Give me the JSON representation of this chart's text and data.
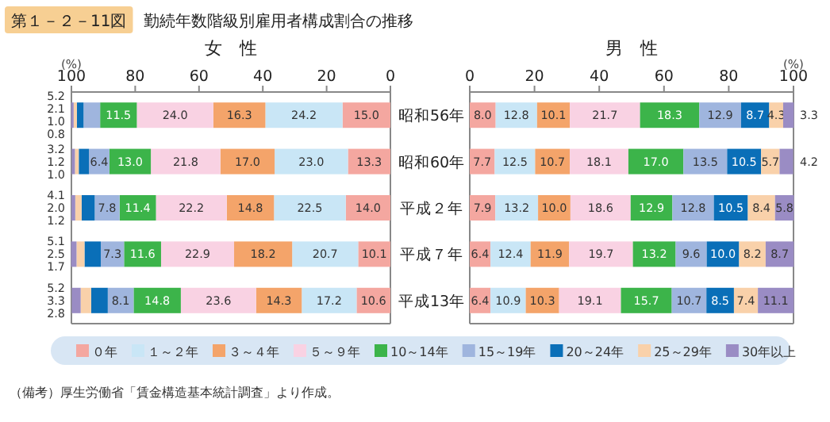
{
  "chart_data": [
    {
      "type": "bar",
      "orientation": "horizontal",
      "stacked": true,
      "title": "第１－２－11図　勤続年数階級別雇用者構成割合の推移",
      "xlabel": "女　性",
      "annotations": [
        "(%)"
      ],
      "categories": [
        null,
        null,
        null,
        null,
        null
      ],
      "tick_labels": "x",
      "xlim": [
        100,
        0
      ],
      "xticks": [
        100,
        80,
        60,
        40,
        20,
        0
      ],
      "legend": false,
      "grid": false,
      "series": [
        {
          "color": "#f4a7a0",
          "values": [
            15.0,
            13.3,
            14.0,
            10.1,
            10.6
          ],
          "value_labels": [
            "15.0",
            "13.3",
            "14.0",
            "10.1",
            "10.6"
          ]
        },
        {
          "color": "#c9e6f6",
          "values": [
            24.2,
            23.0,
            22.5,
            20.7,
            17.2
          ],
          "value_labels": [
            "24.2",
            "23.0",
            "22.5",
            "20.7",
            "17.2"
          ]
        },
        {
          "color": "#f4a46a",
          "values": [
            16.3,
            17.0,
            14.8,
            18.2,
            14.3
          ],
          "value_labels": [
            "16.3",
            "17.0",
            "14.8",
            "18.2",
            "14.3"
          ]
        },
        {
          "color": "#f9d2e3",
          "values": [
            24.0,
            21.8,
            22.2,
            22.9,
            23.6
          ],
          "value_labels": [
            "24.0",
            "21.8",
            "22.2",
            "22.9",
            "23.6"
          ]
        },
        {
          "color": "#3cb44a",
          "values": [
            11.5,
            13.0,
            11.4,
            11.6,
            14.8
          ],
          "value_labels": [
            "11.5",
            "13.0",
            "11.4",
            "11.6",
            "14.8"
          ]
        },
        {
          "color": "#9fb5de",
          "values": [
            5.2,
            6.4,
            7.8,
            7.3,
            8.1
          ],
          "value_labels": [
            "5.2",
            "6.4",
            "7.8",
            "7.3",
            "8.1"
          ]
        },
        {
          "color": "#0a6fb8",
          "values": [
            2.1,
            3.2,
            4.1,
            5.1,
            5.2
          ],
          "value_labels": [
            "2.1",
            "3.2",
            "4.1",
            "5.1",
            "5.2"
          ]
        },
        {
          "color": "#f9d1aa",
          "values": [
            1.0,
            1.2,
            2.0,
            2.5,
            3.3
          ],
          "value_labels": [
            "1.0",
            "1.2",
            "2.0",
            "2.5",
            "3.3"
          ]
        },
        {
          "color": "#9a8cc4",
          "values": [
            0.8,
            1.0,
            1.2,
            1.7,
            2.8
          ],
          "value_labels": [
            "0.8",
            "1.0",
            "1.2",
            "1.7",
            "2.8"
          ]
        }
      ]
    },
    {
      "type": "bar",
      "orientation": "horizontal",
      "stacked": true,
      "xlabel": "男　性",
      "annotations": [
        "(%)",
        "（備考）厚生労働省「賃金構造基本統計調査」より作成。"
      ],
      "categories": [
        "昭和56年",
        "昭和60年",
        "平成２年",
        "平成７年",
        "平成13年"
      ],
      "xlim": [
        0,
        100
      ],
      "xticks": [
        0,
        20,
        40,
        60,
        80,
        100
      ],
      "legend": "bottom",
      "grid": false,
      "series": [
        {
          "name": "０年",
          "color": "#f4a7a0",
          "values": [
            8.0,
            7.7,
            7.9,
            6.4,
            6.4
          ],
          "value_labels": [
            "8.0",
            "7.7",
            "7.9",
            "6.4",
            "6.4"
          ]
        },
        {
          "name": "１～２年",
          "color": "#c9e6f6",
          "values": [
            12.8,
            12.5,
            13.2,
            12.4,
            10.9
          ],
          "value_labels": [
            "12.8",
            "12.5",
            "13.2",
            "12.4",
            "10.9"
          ]
        },
        {
          "name": "３～４年",
          "color": "#f4a46a",
          "values": [
            10.1,
            10.7,
            10.0,
            11.9,
            10.3
          ],
          "value_labels": [
            "10.1",
            "10.7",
            "10.0",
            "11.9",
            "10.3"
          ]
        },
        {
          "name": "５～９年",
          "color": "#f9d2e3",
          "values": [
            21.7,
            18.1,
            18.6,
            19.7,
            19.1
          ],
          "value_labels": [
            "21.7",
            "18.1",
            "18.6",
            "19.7",
            "19.1"
          ]
        },
        {
          "name": "10～14年",
          "color": "#3cb44a",
          "values": [
            18.3,
            17.0,
            12.9,
            13.2,
            15.7
          ],
          "value_labels": [
            "18.3",
            "17.0",
            "12.9",
            "13.2",
            "15.7"
          ]
        },
        {
          "name": "15～19年",
          "color": "#9fb5de",
          "values": [
            12.9,
            13.5,
            12.8,
            9.6,
            10.7
          ],
          "value_labels": [
            "12.9",
            "13.5",
            "12.8",
            "9.6",
            "10.7"
          ]
        },
        {
          "name": "20～24年",
          "color": "#0a6fb8",
          "values": [
            8.7,
            10.5,
            10.5,
            10.0,
            8.5
          ],
          "value_labels": [
            "8.7",
            "10.5",
            "10.5",
            "10.0",
            "8.5"
          ]
        },
        {
          "name": "25～29年",
          "color": "#f9d1aa",
          "values": [
            4.3,
            5.7,
            8.4,
            8.2,
            7.4
          ],
          "value_labels": [
            "4.3",
            "5.7",
            "8.4",
            "8.2",
            "7.4"
          ]
        },
        {
          "name": "30年以上",
          "color": "#9a8cc4",
          "values": [
            3.3,
            4.2,
            5.8,
            8.7,
            11.1
          ],
          "value_labels": [
            "3.3",
            "4.2",
            "5.8",
            "8.7",
            "11.1"
          ]
        }
      ]
    }
  ]
}
